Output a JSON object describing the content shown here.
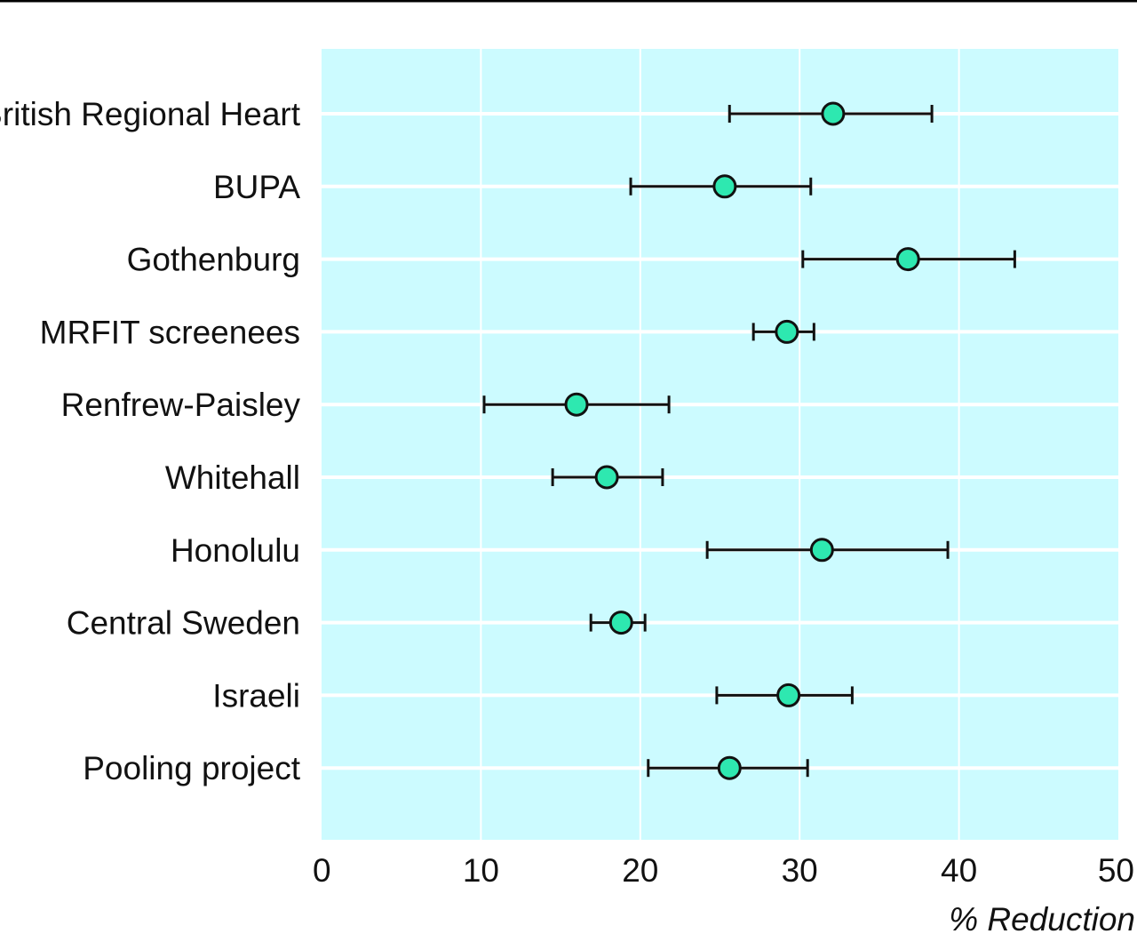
{
  "colors": {
    "plot_background": "#ccfbff",
    "gridline": "#ffffff",
    "marker_fill": "#2ee8b0",
    "marker_stroke": "#111111",
    "errorbar": "#111111",
    "top_rule": "#000000"
  },
  "chart_data": {
    "type": "scatter",
    "variant": "forest-plot-with-confidence-intervals",
    "title": "",
    "xlabel": "% Reduction",
    "ylabel": "",
    "xlim": [
      0,
      50
    ],
    "xticks": [
      0,
      10,
      20,
      30,
      40,
      50
    ],
    "xtick_labels": [
      "0",
      "10",
      "20",
      "30",
      "40",
      "50"
    ],
    "grid": "horizontal lines at each category",
    "categories": [
      "British Regional Heart",
      "BUPA",
      "Gothenburg",
      "MRFIT screenees",
      "Renfrew-Paisley",
      "Whitehall",
      "Honolulu",
      "Central Sweden",
      "Israeli",
      "Pooling project"
    ],
    "series": [
      {
        "estimate": [
          32.1,
          25.3,
          36.8,
          29.2,
          16.0,
          17.9,
          31.4,
          18.8,
          29.3,
          25.6
        ],
        "ci_lower": [
          25.6,
          19.4,
          30.2,
          27.1,
          10.2,
          14.5,
          24.2,
          16.9,
          24.8,
          20.5
        ],
        "ci_upper": [
          38.3,
          30.7,
          43.5,
          30.9,
          21.8,
          21.4,
          39.3,
          20.3,
          33.3,
          30.5
        ]
      }
    ]
  }
}
